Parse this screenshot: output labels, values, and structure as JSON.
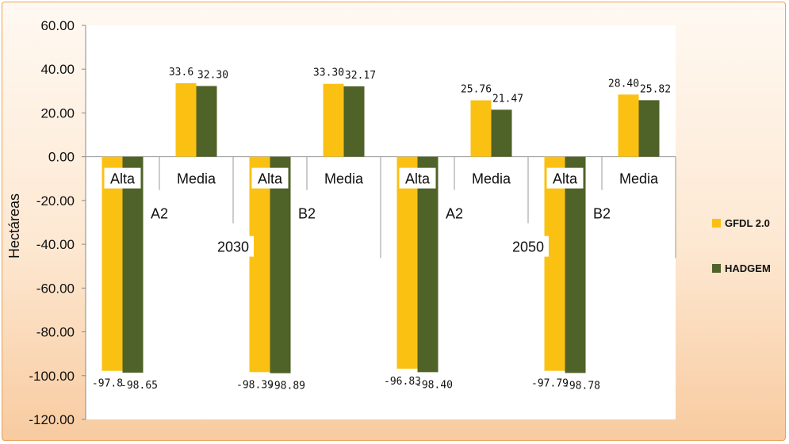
{
  "chart_data": {
    "type": "bar",
    "ylabel": "Hectáreas",
    "ylim": [
      -120,
      60
    ],
    "ytick_step": 20,
    "yticks": [
      "60.00",
      "40.00",
      "20.00",
      "0.00",
      "-20.00",
      "-40.00",
      "-60.00",
      "-80.00",
      "-100.00",
      "-120.00"
    ],
    "categories": [
      [
        "Alta",
        "A2",
        "2030"
      ],
      [
        "Media",
        "A2",
        "2030"
      ],
      [
        "Alta",
        "B2",
        "2030"
      ],
      [
        "Media",
        "B2",
        "2030"
      ],
      [
        "Alta",
        "A2",
        "2050"
      ],
      [
        "Media",
        "A2",
        "2050"
      ],
      [
        "Alta",
        "B2",
        "2050"
      ],
      [
        "Media",
        "B2",
        "2050"
      ]
    ],
    "level1_labels": [
      "Alta",
      "Media",
      "Alta",
      "Media",
      "Alta",
      "Media",
      "Alta",
      "Media"
    ],
    "level2_labels": [
      "A2",
      "B2",
      "A2",
      "B2"
    ],
    "level3_labels": [
      "2030",
      "2050"
    ],
    "series": [
      {
        "name": "GFDL 2.0",
        "color": "#fbc112",
        "values": [
          -97.8,
          33.6,
          -98.39,
          33.3,
          -96.83,
          25.76,
          -97.79,
          28.4
        ],
        "labels": [
          "-97.8",
          "33.6",
          "-98.39",
          "33.30",
          "-96.83",
          "25.76",
          "-97.79",
          "28.40"
        ]
      },
      {
        "name": "HADGEM",
        "color": "#4f6228",
        "values": [
          -98.65,
          32.3,
          -98.89,
          32.17,
          -98.4,
          21.47,
          -98.78,
          25.82
        ],
        "labels": [
          "-98.65",
          "32.30",
          "-98.89",
          "32.17",
          "-98.40",
          "21.47",
          "-98.78",
          "25.82"
        ]
      }
    ],
    "legend_position": "right",
    "grid": false
  }
}
